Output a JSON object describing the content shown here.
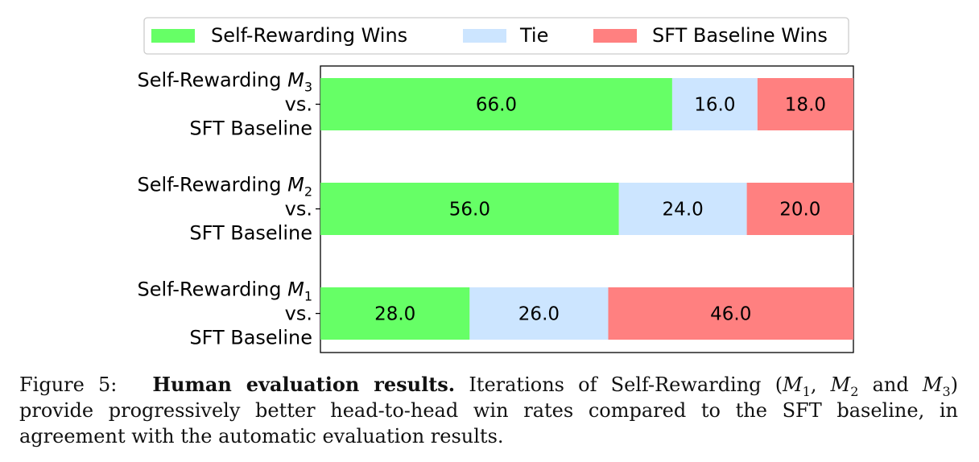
{
  "chart_data": {
    "type": "bar",
    "orientation": "horizontal",
    "stacked": true,
    "categories": [
      {
        "line1": "Self-Rewarding ",
        "model": "M",
        "sub": "3",
        "line2": "vs.",
        "line3": "SFT Baseline"
      },
      {
        "line1": "Self-Rewarding ",
        "model": "M",
        "sub": "2",
        "line2": "vs.",
        "line3": "SFT Baseline"
      },
      {
        "line1": "Self-Rewarding ",
        "model": "M",
        "sub": "1",
        "line2": "vs.",
        "line3": "SFT Baseline"
      }
    ],
    "series": [
      {
        "name": "Self-Rewarding Wins",
        "color": "#66ff66",
        "values": [
          66.0,
          56.0,
          28.0
        ]
      },
      {
        "name": "Tie",
        "color": "#cce5ff",
        "values": [
          16.0,
          24.0,
          26.0
        ]
      },
      {
        "name": "SFT Baseline Wins",
        "color": "#ff8080",
        "values": [
          18.0,
          20.0,
          46.0
        ]
      }
    ],
    "xlim": [
      0,
      100
    ],
    "legend": "top-center",
    "grid": false
  },
  "caption": {
    "label": "Figure 5:",
    "bold": "Human evaluation results.",
    "text_before_m1": " Iterations of Self-Rewarding (",
    "m": "M",
    "sub1": "1",
    "sep1": ", ",
    "sub2": "2",
    "sep2": " and ",
    "sub3": "3",
    "text_after": ") provide progressively better head-to-head win rates compared to the SFT baseline, in agreement with the automatic evaluation results."
  }
}
